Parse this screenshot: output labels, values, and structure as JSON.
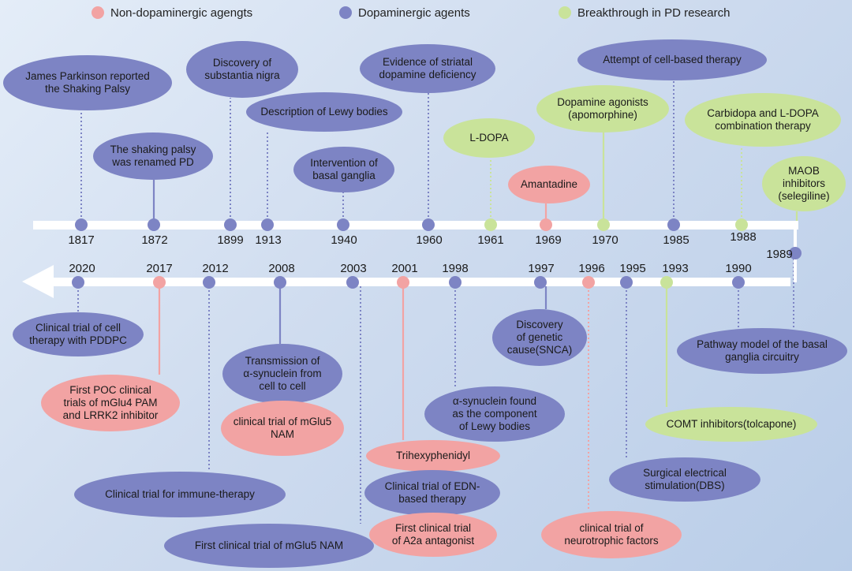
{
  "colors": {
    "dopaminergic": "#7d84c4",
    "non_dopaminergic": "#f2a3a3",
    "breakthrough": "#c9e39a",
    "axis": "#ffffff"
  },
  "legend": [
    {
      "label": "Non-dopaminergic agengts",
      "category": "non"
    },
    {
      "label": "Dopaminergic agents",
      "category": "dop"
    },
    {
      "label": "Breakthrough in PD research",
      "category": "brk"
    }
  ],
  "top_timeline": [
    {
      "year": "1817",
      "category": "dop",
      "event": "James Parkinson reported\nthe Shaking Palsy"
    },
    {
      "year": "1872",
      "category": "dop",
      "event": "The shaking palsy\nwas renamed PD"
    },
    {
      "year": "1899",
      "category": "dop",
      "event": "Discovery of\nsubstantia nigra"
    },
    {
      "year": "1913",
      "category": "dop",
      "event": "Description of Lewy bodies"
    },
    {
      "year": "1940",
      "category": "dop",
      "event": "Intervention of\nbasal ganglia"
    },
    {
      "year": "1960",
      "category": "dop",
      "event": "Evidence of striatal\ndopamine deficiency"
    },
    {
      "year": "1961",
      "category": "brk",
      "event": "L-DOPA"
    },
    {
      "year": "1969",
      "category": "non",
      "event": "Amantadine"
    },
    {
      "year": "1970",
      "category": "brk",
      "event": "Dopamine agonists\n(apomorphine)"
    },
    {
      "year": "1985",
      "category": "dop",
      "event": "Attempt of cell-based therapy"
    },
    {
      "year": "1988",
      "category": "brk",
      "event": "Carbidopa and L-DOPA\ncombination therapy"
    },
    {
      "year": "1989",
      "category": "brk",
      "event": "MAOB\ninhibitors\n(selegiline)"
    }
  ],
  "bottom_timeline": [
    {
      "year": "2020",
      "category": "dop",
      "events": [
        "Clinical trial of cell\ntherapy with PDDPC"
      ]
    },
    {
      "year": "2017",
      "category": "non",
      "events": [
        "First POC clinical\ntrials of mGlu4 PAM\nand LRRK2 inhibitor"
      ]
    },
    {
      "year": "2012",
      "category": "dop",
      "events": [
        "Clinical trial for immune-therapy"
      ]
    },
    {
      "year": "2008",
      "category": "dop",
      "events": [
        "Transmission of\nα-synuclein from\ncell to cell",
        "clinical trial of mGlu5\nNAM"
      ]
    },
    {
      "year": "2003",
      "category": "dop",
      "events": [
        "First clinical trial of mGlu5 NAM"
      ]
    },
    {
      "year": "2001",
      "category": "non",
      "events": [
        "Trihexyphenidyl",
        "Clinical trial of EDN-\nbased therapy",
        "First clinical trial\nof A2a antagonist"
      ]
    },
    {
      "year": "1998",
      "category": "dop",
      "events": [
        "α-synuclein found\nas the component\nof Lewy bodies"
      ]
    },
    {
      "year": "1997",
      "category": "dop",
      "events": [
        "Discovery\nof genetic\ncause(SNCA)"
      ]
    },
    {
      "year": "1996",
      "category": "non",
      "events": [
        "clinical trial of\nneurotrophic factors"
      ]
    },
    {
      "year": "1995",
      "category": "dop",
      "events": [
        "Surgical electrical\nstimulation(DBS)"
      ]
    },
    {
      "year": "1993",
      "category": "brk",
      "events": [
        "COMT inhibitors(tolcapone)"
      ]
    },
    {
      "year": "1990",
      "category": "dop",
      "events": [
        "Pathway model of the basal\nganglia circuitry"
      ]
    },
    {
      "year": "1989",
      "category": "dop",
      "events": []
    }
  ]
}
